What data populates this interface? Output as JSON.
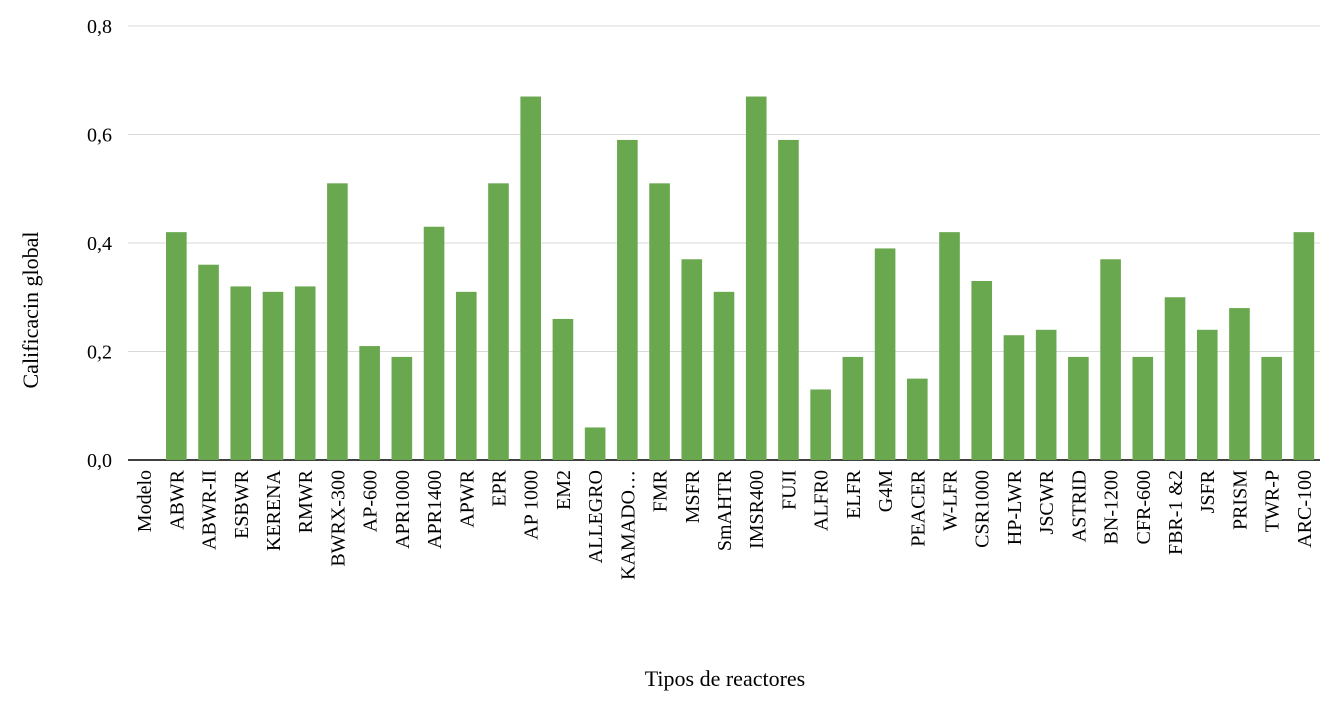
{
  "chart_data": {
    "type": "bar",
    "title": "",
    "xlabel": "Tipos de reactores",
    "ylabel": "Calificacin global",
    "ylim": [
      0,
      0.8
    ],
    "yticks": [
      "0,0",
      "0,2",
      "0,4",
      "0,6",
      "0,8"
    ],
    "grid": true,
    "legend": "none",
    "categories": [
      "Modelo",
      "ABWR",
      "ABWR-II",
      "ESBWR",
      "KERENA",
      "RMWR",
      "BWRX-300",
      "AP-600",
      "APR1000",
      "APR1400",
      "APWR",
      "EPR",
      "AP 1000",
      "EM2",
      "ALLEGRO",
      "KAMADO…",
      "FMR",
      "MSFR",
      "SmAHTR",
      "IMSR400",
      "FUJI",
      "ALFR0",
      "ELFR",
      "G4M",
      "PEACER",
      "W-LFR",
      "CSR1000",
      "HP-LWR",
      "JSCWR",
      "ASTRID",
      "BN-1200",
      "CFR-600",
      "FBR-1 &2",
      "JSFR",
      "PRISM",
      "TWR-P",
      "ARC-100"
    ],
    "values": [
      0,
      0.42,
      0.36,
      0.32,
      0.31,
      0.32,
      0.51,
      0.21,
      0.19,
      0.43,
      0.31,
      0.51,
      0.67,
      0.26,
      0.06,
      0.59,
      0.51,
      0.37,
      0.31,
      0.67,
      0.59,
      0.13,
      0.19,
      0.39,
      0.15,
      0.42,
      0.33,
      0.23,
      0.24,
      0.19,
      0.37,
      0.19,
      0.3,
      0.24,
      0.28,
      0.19,
      0.42
    ],
    "colors": {
      "bar": "#6aa84f",
      "grid": "#d9d9d9",
      "axis": "#000000"
    }
  }
}
